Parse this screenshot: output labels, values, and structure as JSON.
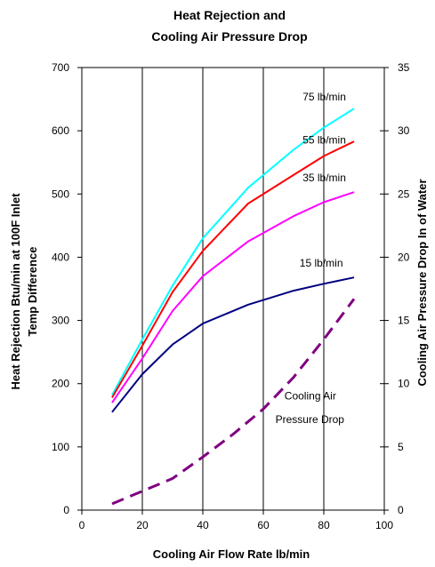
{
  "chart_data": {
    "type": "line",
    "title_lines": [
      "Heat Rejection and",
      "Cooling Air Pressure Drop"
    ],
    "xlabel": "Cooling Air Flow Rate lb/min",
    "ylabel_lines": [
      "Heat Rejection Btu/min at 100F Inlet",
      "Temp Difference"
    ],
    "y2label": "Cooling Air Pressure Drop In of Water",
    "xlim": [
      0,
      100
    ],
    "ylim": [
      0,
      700
    ],
    "y2lim": [
      0,
      35
    ],
    "x_ticks": [
      0,
      20,
      40,
      60,
      80,
      100
    ],
    "y_ticks": [
      0,
      100,
      200,
      300,
      400,
      500,
      600,
      700
    ],
    "y2_ticks": [
      0,
      5,
      10,
      15,
      20,
      25,
      30,
      35
    ],
    "grid": "vertical",
    "series": [
      {
        "name": "75 lb/min",
        "color": "#00ffff",
        "axis": "left",
        "style": "solid",
        "x": [
          10,
          20,
          30,
          40,
          55,
          70,
          80,
          90
        ],
        "y": [
          182,
          270,
          355,
          430,
          510,
          570,
          605,
          635
        ]
      },
      {
        "name": "55 lb/min",
        "color": "#ff0000",
        "axis": "left",
        "style": "solid",
        "x": [
          10,
          20,
          30,
          40,
          55,
          70,
          80,
          90
        ],
        "y": [
          178,
          260,
          345,
          410,
          485,
          530,
          560,
          583
        ]
      },
      {
        "name": "35 lb/min",
        "color": "#ff00ff",
        "axis": "left",
        "style": "solid",
        "x": [
          10,
          20,
          30,
          40,
          55,
          70,
          80,
          90
        ],
        "y": [
          170,
          240,
          315,
          370,
          425,
          465,
          487,
          503
        ]
      },
      {
        "name": "15 lb/min",
        "color": "#000080",
        "axis": "left",
        "style": "solid",
        "x": [
          10,
          20,
          30,
          40,
          55,
          70,
          80,
          90
        ],
        "y": [
          155,
          215,
          262,
          295,
          325,
          347,
          358,
          368
        ]
      },
      {
        "name": "Cooling Air Pressure Drop",
        "color": "#800080",
        "axis": "right",
        "style": "dashed",
        "x": [
          10,
          20,
          30,
          40,
          50,
          60,
          70,
          80,
          90
        ],
        "y": [
          0.5,
          1.5,
          2.5,
          4.2,
          6.0,
          8.0,
          10.5,
          13.5,
          16.7
        ]
      }
    ],
    "annotations": [
      {
        "text": "75 lb/min",
        "x": 73,
        "y": 648,
        "axis": "left"
      },
      {
        "text": "55 lb/min",
        "x": 73,
        "y": 580,
        "axis": "left"
      },
      {
        "text": "35 lb/min",
        "x": 73,
        "y": 520,
        "axis": "left"
      },
      {
        "text": "15 lb/min",
        "x": 72,
        "y": 385,
        "axis": "left"
      },
      {
        "text": "Cooling Air",
        "x": 67,
        "y": 175,
        "axis": "left"
      },
      {
        "text": "Pressure Drop",
        "x": 64,
        "y": 138,
        "axis": "left"
      }
    ]
  }
}
